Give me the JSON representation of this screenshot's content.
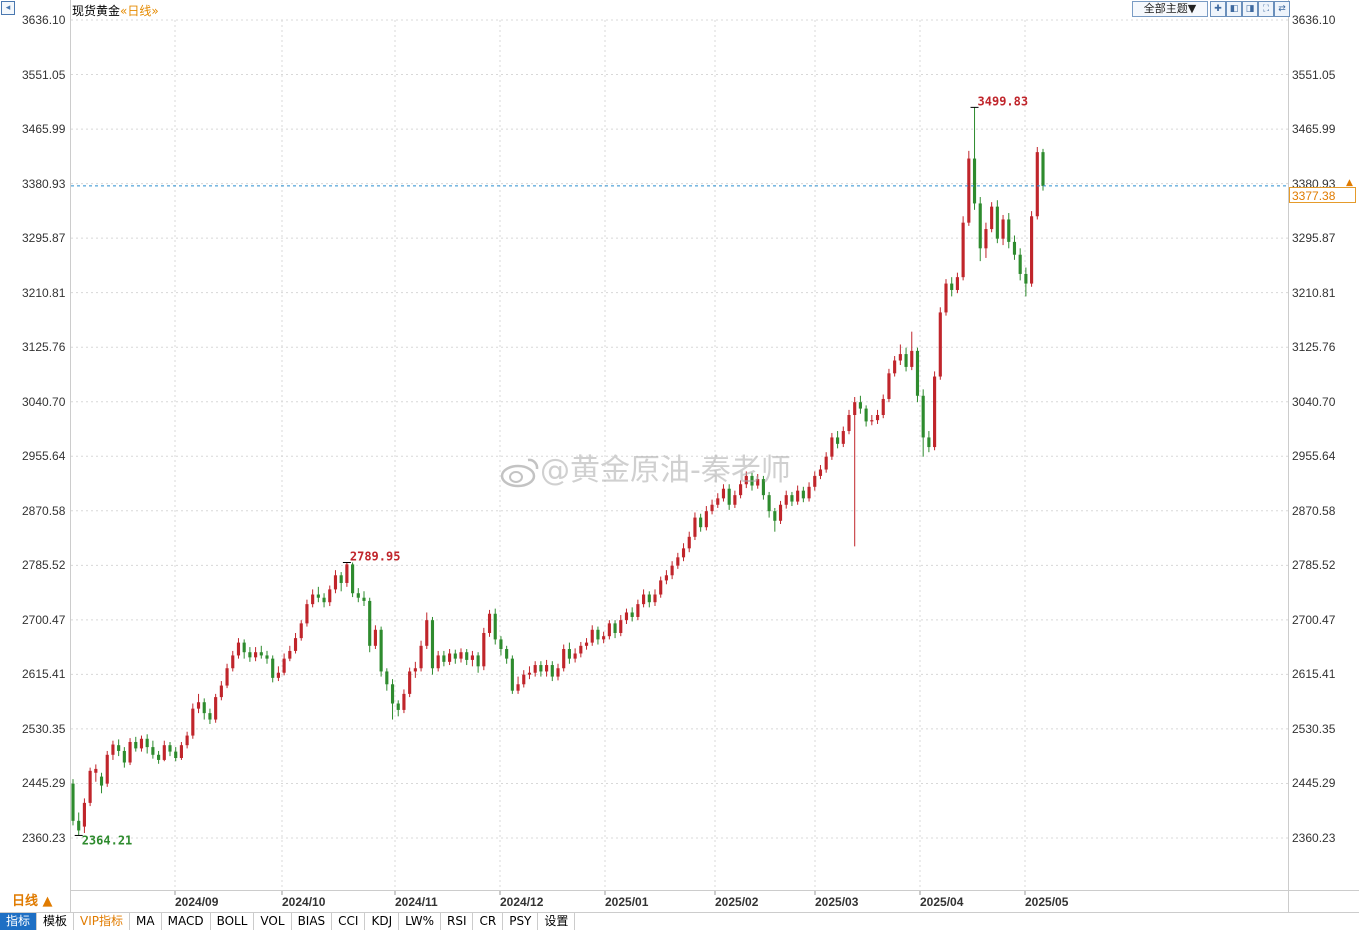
{
  "header": {
    "instrument": "现货黄金",
    "period_text": "«日线»",
    "theme_select": "全部主题▼",
    "tool_icons": [
      "plus-square-icon",
      "panel-left-icon",
      "panel-right-icon",
      "fullscreen-icon",
      "link-icon"
    ]
  },
  "footer": {
    "period_button": "日线 ▲",
    "tabs": [
      {
        "label": "指标",
        "active": true
      },
      {
        "label": "模板"
      },
      {
        "label": "VIP指标",
        "vip": true
      },
      {
        "label": "MA"
      },
      {
        "label": "MACD"
      },
      {
        "label": "BOLL"
      },
      {
        "label": "VOL"
      },
      {
        "label": "BIAS"
      },
      {
        "label": "CCI"
      },
      {
        "label": "KDJ"
      },
      {
        "label": "LW%"
      },
      {
        "label": "RSI"
      },
      {
        "label": "CR"
      },
      {
        "label": "PSY"
      },
      {
        "label": "设置"
      }
    ]
  },
  "watermark": "@黄金原油-秦老师",
  "colors": {
    "up": "#c0252b",
    "down": "#2e8b2e",
    "grid": "#d8d8d8",
    "last_price_line": "#2a8fd0",
    "accent": "#e07b00",
    "tab_active": "#1e6fc4"
  },
  "chart_data": {
    "type": "candlestick",
    "title": "现货黄金",
    "period": "日线",
    "y_ticks": [
      "3636.10",
      "3551.05",
      "3465.99",
      "3380.93",
      "3295.87",
      "3210.81",
      "3125.76",
      "3040.70",
      "2955.64",
      "2870.58",
      "2785.52",
      "2700.47",
      "2615.41",
      "2530.35",
      "2445.29",
      "2360.23"
    ],
    "ylim": [
      2360.23,
      3636.1
    ],
    "x_ticks": [
      "2024/09",
      "2024/10",
      "2024/11",
      "2024/12",
      "2025/01",
      "2025/02",
      "2025/03",
      "2025/04",
      "2025/05"
    ],
    "grid": true,
    "last_price": "3377.38",
    "annotations": [
      {
        "label": "3499.83",
        "type": "high"
      },
      {
        "label": "2789.95",
        "type": "high"
      },
      {
        "label": "2364.21",
        "type": "low"
      }
    ],
    "candles": [
      [
        2445,
        2387,
        2452,
        2380
      ],
      [
        2387,
        2372,
        2400,
        2364.21
      ],
      [
        2378,
        2415,
        2422,
        2368
      ],
      [
        2415,
        2465,
        2470,
        2410
      ],
      [
        2462,
        2468,
        2475,
        2448
      ],
      [
        2456,
        2442,
        2462,
        2430
      ],
      [
        2445,
        2490,
        2496,
        2440
      ],
      [
        2490,
        2506,
        2512,
        2482
      ],
      [
        2505,
        2496,
        2514,
        2488
      ],
      [
        2496,
        2478,
        2502,
        2470
      ],
      [
        2478,
        2510,
        2516,
        2474
      ],
      [
        2510,
        2500,
        2518,
        2495
      ],
      [
        2500,
        2515,
        2520,
        2495
      ],
      [
        2515,
        2502,
        2522,
        2492
      ],
      [
        2502,
        2490,
        2512,
        2484
      ],
      [
        2490,
        2482,
        2496,
        2476
      ],
      [
        2482,
        2505,
        2512,
        2480
      ],
      [
        2505,
        2495,
        2510,
        2488
      ],
      [
        2495,
        2485,
        2502,
        2480
      ],
      [
        2485,
        2505,
        2510,
        2482
      ],
      [
        2505,
        2520,
        2526,
        2500
      ],
      [
        2520,
        2562,
        2570,
        2515
      ],
      [
        2562,
        2572,
        2585,
        2555
      ],
      [
        2572,
        2555,
        2578,
        2545
      ],
      [
        2555,
        2545,
        2562,
        2538
      ],
      [
        2545,
        2580,
        2585,
        2540
      ],
      [
        2580,
        2598,
        2605,
        2575
      ],
      [
        2598,
        2625,
        2632,
        2594
      ],
      [
        2625,
        2645,
        2652,
        2620
      ],
      [
        2645,
        2665,
        2672,
        2640
      ],
      [
        2665,
        2650,
        2670,
        2640
      ],
      [
        2650,
        2642,
        2658,
        2635
      ],
      [
        2642,
        2650,
        2658,
        2636
      ],
      [
        2650,
        2645,
        2660,
        2640
      ],
      [
        2645,
        2640,
        2652,
        2632
      ],
      [
        2640,
        2610,
        2645,
        2603
      ],
      [
        2610,
        2618,
        2628,
        2605
      ],
      [
        2618,
        2640,
        2648,
        2614
      ],
      [
        2640,
        2652,
        2660,
        2636
      ],
      [
        2652,
        2672,
        2680,
        2648
      ],
      [
        2672,
        2695,
        2700,
        2668
      ],
      [
        2695,
        2725,
        2732,
        2690
      ],
      [
        2725,
        2740,
        2748,
        2720
      ],
      [
        2740,
        2735,
        2752,
        2728
      ],
      [
        2735,
        2728,
        2742,
        2720
      ],
      [
        2728,
        2748,
        2754,
        2722
      ],
      [
        2748,
        2770,
        2778,
        2742
      ],
      [
        2770,
        2758,
        2775,
        2745
      ],
      [
        2758,
        2787,
        2789.95,
        2752
      ],
      [
        2787,
        2742,
        2790,
        2736
      ],
      [
        2742,
        2735,
        2750,
        2728
      ],
      [
        2735,
        2730,
        2745,
        2722
      ],
      [
        2730,
        2660,
        2735,
        2650
      ],
      [
        2660,
        2685,
        2692,
        2655
      ],
      [
        2685,
        2620,
        2690,
        2612
      ],
      [
        2620,
        2600,
        2625,
        2590
      ],
      [
        2600,
        2570,
        2608,
        2545
      ],
      [
        2570,
        2560,
        2575,
        2550
      ],
      [
        2560,
        2585,
        2592,
        2555
      ],
      [
        2585,
        2620,
        2626,
        2580
      ],
      [
        2620,
        2625,
        2635,
        2610
      ],
      [
        2625,
        2660,
        2668,
        2620
      ],
      [
        2660,
        2700,
        2712,
        2655
      ],
      [
        2700,
        2625,
        2705,
        2615
      ],
      [
        2625,
        2645,
        2652,
        2620
      ],
      [
        2645,
        2635,
        2652,
        2628
      ],
      [
        2635,
        2648,
        2655,
        2630
      ],
      [
        2648,
        2640,
        2654,
        2632
      ],
      [
        2640,
        2650,
        2656,
        2634
      ],
      [
        2650,
        2638,
        2655,
        2630
      ],
      [
        2638,
        2645,
        2652,
        2628
      ],
      [
        2645,
        2628,
        2650,
        2618
      ],
      [
        2628,
        2680,
        2688,
        2622
      ],
      [
        2680,
        2710,
        2716,
        2674
      ],
      [
        2710,
        2670,
        2718,
        2662
      ],
      [
        2670,
        2655,
        2675,
        2645
      ],
      [
        2655,
        2640,
        2660,
        2632
      ],
      [
        2640,
        2590,
        2645,
        2585
      ],
      [
        2590,
        2600,
        2612,
        2585
      ],
      [
        2600,
        2615,
        2622,
        2595
      ],
      [
        2615,
        2618,
        2628,
        2608
      ],
      [
        2618,
        2630,
        2636,
        2612
      ],
      [
        2630,
        2620,
        2636,
        2612
      ],
      [
        2620,
        2630,
        2638,
        2612
      ],
      [
        2630,
        2612,
        2636,
        2605
      ],
      [
        2612,
        2625,
        2632,
        2606
      ],
      [
        2625,
        2655,
        2662,
        2620
      ],
      [
        2655,
        2640,
        2665,
        2632
      ],
      [
        2640,
        2648,
        2656,
        2634
      ],
      [
        2648,
        2660,
        2666,
        2642
      ],
      [
        2660,
        2665,
        2672,
        2654
      ],
      [
        2665,
        2685,
        2692,
        2660
      ],
      [
        2685,
        2670,
        2690,
        2662
      ],
      [
        2670,
        2675,
        2682,
        2664
      ],
      [
        2675,
        2695,
        2700,
        2670
      ],
      [
        2695,
        2680,
        2700,
        2672
      ],
      [
        2680,
        2700,
        2708,
        2675
      ],
      [
        2700,
        2712,
        2718,
        2694
      ],
      [
        2712,
        2705,
        2720,
        2698
      ],
      [
        2705,
        2725,
        2732,
        2700
      ],
      [
        2725,
        2740,
        2748,
        2720
      ],
      [
        2740,
        2728,
        2745,
        2720
      ],
      [
        2728,
        2740,
        2748,
        2722
      ],
      [
        2740,
        2762,
        2768,
        2735
      ],
      [
        2762,
        2770,
        2778,
        2756
      ],
      [
        2770,
        2785,
        2792,
        2764
      ],
      [
        2785,
        2798,
        2805,
        2780
      ],
      [
        2798,
        2812,
        2820,
        2792
      ],
      [
        2812,
        2830,
        2838,
        2806
      ],
      [
        2830,
        2860,
        2868,
        2825
      ],
      [
        2860,
        2845,
        2866,
        2838
      ],
      [
        2845,
        2870,
        2878,
        2840
      ],
      [
        2870,
        2880,
        2888,
        2865
      ],
      [
        2880,
        2890,
        2898,
        2875
      ],
      [
        2890,
        2905,
        2912,
        2885
      ],
      [
        2905,
        2880,
        2912,
        2872
      ],
      [
        2880,
        2895,
        2902,
        2875
      ],
      [
        2895,
        2912,
        2918,
        2890
      ],
      [
        2912,
        2925,
        2932,
        2906
      ],
      [
        2925,
        2910,
        2930,
        2902
      ],
      [
        2910,
        2920,
        2928,
        2905
      ],
      [
        2920,
        2895,
        2925,
        2888
      ],
      [
        2895,
        2870,
        2900,
        2860
      ],
      [
        2870,
        2855,
        2875,
        2838
      ],
      [
        2855,
        2880,
        2886,
        2850
      ],
      [
        2880,
        2895,
        2902,
        2874
      ],
      [
        2895,
        2885,
        2900,
        2878
      ],
      [
        2885,
        2902,
        2910,
        2880
      ],
      [
        2902,
        2890,
        2908,
        2884
      ],
      [
        2890,
        2908,
        2915,
        2885
      ],
      [
        2908,
        2925,
        2932,
        2902
      ],
      [
        2925,
        2935,
        2942,
        2920
      ],
      [
        2935,
        2955,
        2962,
        2930
      ],
      [
        2955,
        2985,
        2992,
        2950
      ],
      [
        2985,
        2975,
        2995,
        2968
      ],
      [
        2975,
        2995,
        3002,
        2970
      ],
      [
        2995,
        3020,
        3028,
        2990
      ],
      [
        3020,
        3040,
        3048,
        2815
      ],
      [
        3040,
        3030,
        3050,
        3022
      ],
      [
        3030,
        3010,
        3035,
        3002
      ],
      [
        3010,
        3012,
        3020,
        3004
      ],
      [
        3012,
        3020,
        3028,
        3006
      ],
      [
        3020,
        3045,
        3052,
        3015
      ],
      [
        3045,
        3085,
        3092,
        3040
      ],
      [
        3085,
        3105,
        3112,
        3080
      ],
      [
        3105,
        3115,
        3130,
        3098
      ],
      [
        3115,
        3095,
        3125,
        3088
      ],
      [
        3095,
        3120,
        3150,
        3090
      ],
      [
        3120,
        3050,
        3125,
        3040
      ],
      [
        3050,
        2985,
        3060,
        2955
      ],
      [
        2985,
        2970,
        2995,
        2962
      ],
      [
        2970,
        3080,
        3088,
        2965
      ],
      [
        3080,
        3180,
        3188,
        3075
      ],
      [
        3180,
        3225,
        3232,
        3175
      ],
      [
        3225,
        3215,
        3235,
        3205
      ],
      [
        3215,
        3235,
        3242,
        3210
      ],
      [
        3235,
        3320,
        3330,
        3230
      ],
      [
        3320,
        3420,
        3432,
        3315
      ],
      [
        3420,
        3350,
        3499.83,
        3340
      ],
      [
        3350,
        3280,
        3360,
        3260
      ],
      [
        3280,
        3310,
        3320,
        3265
      ],
      [
        3310,
        3345,
        3352,
        3305
      ],
      [
        3345,
        3295,
        3355,
        3288
      ],
      [
        3295,
        3325,
        3332,
        3285
      ],
      [
        3325,
        3290,
        3335,
        3280
      ],
      [
        3290,
        3270,
        3300,
        3262
      ],
      [
        3270,
        3240,
        3280,
        3230
      ],
      [
        3240,
        3225,
        3250,
        3205
      ],
      [
        3225,
        3330,
        3338,
        3220
      ],
      [
        3330,
        3430,
        3438,
        3325
      ],
      [
        3430,
        3377.38,
        3435,
        3370
      ]
    ]
  }
}
